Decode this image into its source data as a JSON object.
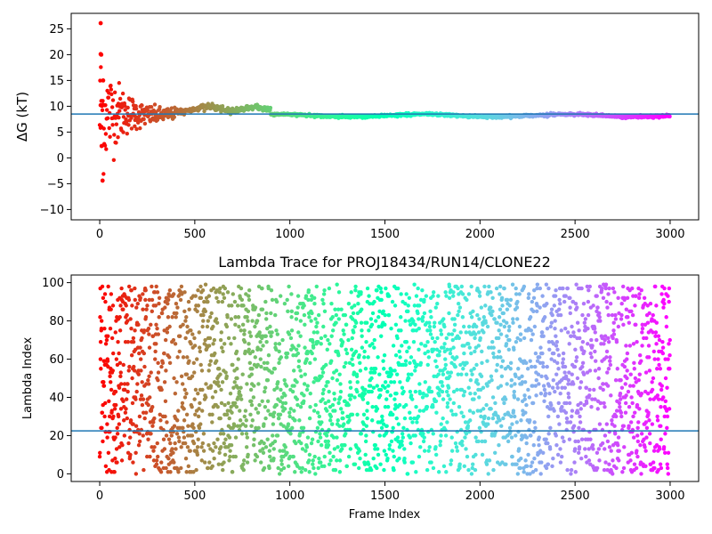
{
  "chart_data": [
    {
      "type": "scatter",
      "title": "",
      "xlabel": "",
      "ylabel": "ΔG (kT)",
      "xlim": [
        -150,
        3150
      ],
      "ylim": [
        -12,
        28
      ],
      "xticks": [
        0,
        500,
        1000,
        1500,
        2000,
        2500,
        3000
      ],
      "yticks": [
        -10,
        -5,
        0,
        5,
        10,
        15,
        20,
        25
      ],
      "hline": 8.5,
      "hline_color": "#1f77b4",
      "colormap": "rainbow",
      "grid": false,
      "n_points": 3000,
      "early_outliers": [
        [
          5,
          26.1
        ],
        [
          5,
          20.1
        ],
        [
          8,
          20.0
        ],
        [
          15,
          -4.4
        ],
        [
          5,
          10.2
        ],
        [
          10,
          2.3
        ],
        [
          18,
          15.0
        ]
      ]
    },
    {
      "type": "scatter",
      "title": "Lambda Trace for PROJ18434/RUN14/CLONE22",
      "xlabel": "Frame Index",
      "ylabel": "Lambda Index",
      "xlim": [
        -150,
        3150
      ],
      "ylim": [
        -4,
        104
      ],
      "xticks": [
        0,
        500,
        1000,
        1500,
        2000,
        2500,
        3000
      ],
      "yticks": [
        0,
        20,
        40,
        60,
        80,
        100
      ],
      "hline": 22.5,
      "hline_color": "#1f77b4",
      "colormap": "rainbow",
      "grid": false,
      "n_points": 3000,
      "lambda_range": [
        0,
        99
      ]
    }
  ]
}
